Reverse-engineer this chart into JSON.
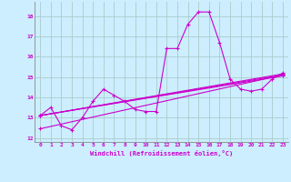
{
  "xlabel": "Windchill (Refroidissement éolien,°C)",
  "background_color": "#cceeff",
  "grid_color": "#aacccc",
  "line_color": "#cc00cc",
  "xlim": [
    -0.5,
    23.5
  ],
  "ylim": [
    11.8,
    18.7
  ],
  "yticks": [
    12,
    13,
    14,
    15,
    16,
    17,
    18
  ],
  "xticks": [
    0,
    1,
    2,
    3,
    4,
    5,
    6,
    7,
    8,
    9,
    10,
    11,
    12,
    13,
    14,
    15,
    16,
    17,
    18,
    19,
    20,
    21,
    22,
    23
  ],
  "series1_x": [
    0,
    1,
    2,
    3,
    4,
    5,
    6,
    7,
    8,
    9,
    10,
    11,
    12,
    13,
    14,
    15,
    16,
    17,
    18,
    19,
    20,
    21,
    22,
    23
  ],
  "series1_y": [
    13.1,
    13.5,
    12.6,
    12.4,
    13.0,
    13.8,
    14.4,
    14.1,
    13.8,
    13.4,
    13.3,
    13.3,
    16.4,
    16.4,
    17.6,
    18.2,
    18.2,
    16.7,
    14.9,
    14.4,
    14.3,
    14.4,
    14.9,
    15.2
  ],
  "series2_x": [
    0,
    23
  ],
  "series2_y": [
    13.1,
    15.15
  ],
  "series3_x": [
    0,
    23
  ],
  "series3_y": [
    13.1,
    15.1
  ],
  "series4_x": [
    0,
    23
  ],
  "series4_y": [
    13.1,
    15.05
  ],
  "series5_x": [
    0,
    23
  ],
  "series5_y": [
    12.45,
    15.1
  ]
}
